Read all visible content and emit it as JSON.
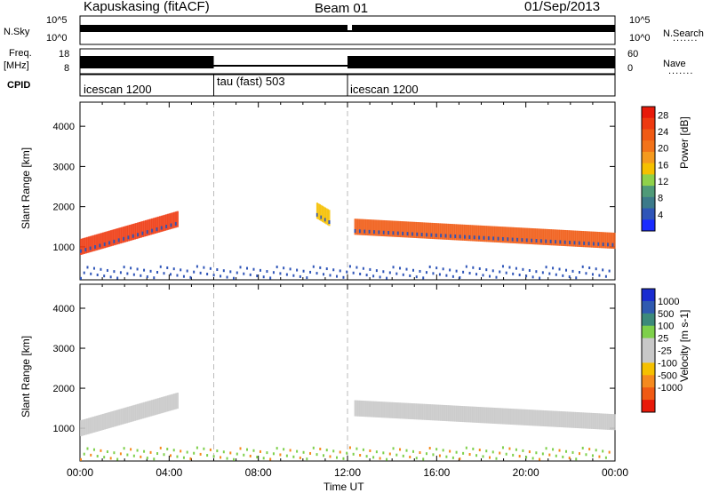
{
  "header": {
    "station": "Kapuskasing (fitACF)",
    "beam": "Beam 01",
    "date": "01/Sep/2013"
  },
  "left_labels": {
    "nsky": "N.Sky",
    "freq": "Freq.",
    "freq_unit": "[MHz]",
    "cpid": "CPID"
  },
  "right_labels": {
    "nsearch": "N.Search",
    "nave": "Nave",
    "dots": "......."
  },
  "noise_axis": {
    "left_top": "10^5",
    "left_bottom": "10^0",
    "right_top": "10^5",
    "right_bottom": "10^0"
  },
  "freq_axis": {
    "left_top": "18",
    "left_bottom": "8",
    "right_top": "60",
    "right_bottom": "0"
  },
  "cpid_segments": [
    {
      "label": "icescan 1200",
      "start_hour": 0,
      "end_hour": 6
    },
    {
      "label": "tau (fast) 503",
      "start_hour": 6,
      "end_hour": 12
    },
    {
      "label": "icescan 1200",
      "start_hour": 12,
      "end_hour": 24
    }
  ],
  "colors": {
    "power_scale": [
      "#1a2cff",
      "#2f55b8",
      "#3c7a8a",
      "#4f9a78",
      "#8fd14a",
      "#f5c000",
      "#f59a1e",
      "#f2731a",
      "#f05a14",
      "#ee3a10",
      "#e81a0a"
    ],
    "velocity_scale": [
      "#1a2cd0",
      "#2f5ab0",
      "#3c8a7a",
      "#7ed04a",
      "#c8c8c8",
      "#c8c8c8",
      "#f5c000",
      "#f58a1e",
      "#f05a14",
      "#e81a0a"
    ]
  },
  "chart_data": [
    {
      "type": "heatmap",
      "name": "power",
      "xlabel": "",
      "ylabel": "Slant Range [km]",
      "x_ticks": [
        "00:00",
        "04:00",
        "08:00",
        "12:00",
        "16:00",
        "20:00",
        "00:00"
      ],
      "xlim_hours": [
        0,
        24
      ],
      "y_ticks": [
        1000,
        2000,
        3000,
        4000
      ],
      "ylim": [
        180,
        4600
      ],
      "colorbar_label": "Power [dB]",
      "colorbar_ticks": [
        4,
        8,
        12,
        16,
        20,
        24,
        28
      ],
      "colorbar_range": [
        0,
        30
      ],
      "bands": [
        {
          "start_hour": 0.0,
          "end_hour": 4.4,
          "range_start": 1000,
          "range_end": 1700,
          "level": 9
        },
        {
          "start_hour": 12.3,
          "end_hour": 24.0,
          "range_start": 1500,
          "range_end": 1150,
          "level": 8
        },
        {
          "start_hour": 10.6,
          "end_hour": 11.2,
          "range_start": 1900,
          "range_end": 1700,
          "level": 5
        }
      ]
    },
    {
      "type": "heatmap",
      "name": "velocity",
      "xlabel": "Time UT",
      "ylabel": "Slant Range [km]",
      "x_ticks": [
        "00:00",
        "04:00",
        "08:00",
        "12:00",
        "16:00",
        "20:00",
        "00:00"
      ],
      "xlim_hours": [
        0,
        24
      ],
      "y_ticks": [
        1000,
        2000,
        3000,
        4000
      ],
      "ylim": [
        180,
        4600
      ],
      "colorbar_label": "Velocity [m s-1]",
      "colorbar_ticks": [
        "1000",
        "500",
        "100",
        "25",
        "-25",
        "-100",
        "-500",
        "-1000"
      ],
      "bands": [
        {
          "start_hour": 0.0,
          "end_hour": 4.4,
          "range_start": 1000,
          "range_end": 1700,
          "level": 0
        },
        {
          "start_hour": 12.3,
          "end_hour": 24.0,
          "range_start": 1500,
          "range_end": 1150,
          "level": 0
        }
      ]
    }
  ]
}
